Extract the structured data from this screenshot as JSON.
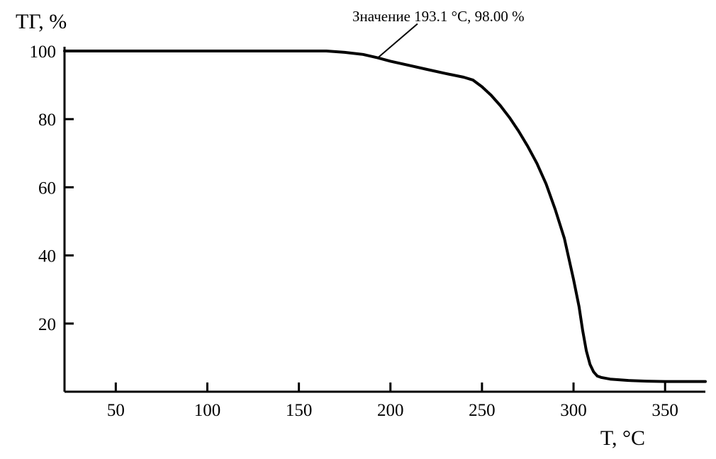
{
  "chart_data": {
    "type": "line",
    "title": "",
    "xlabel": "T, °C",
    "ylabel": "ТГ, %",
    "xlim": [
      22,
      372
    ],
    "ylim": [
      0,
      100
    ],
    "x_ticks": [
      50,
      100,
      150,
      200,
      250,
      300,
      350
    ],
    "y_ticks": [
      20,
      40,
      60,
      80,
      100
    ],
    "grid": false,
    "annotation": {
      "text": "Значение 193.1 °С, 98.00 %",
      "x": 193.1,
      "y": 98.0
    },
    "series": [
      {
        "color": "#000000",
        "x": [
          22,
          100,
          150,
          165,
          175,
          185,
          193,
          200,
          210,
          220,
          230,
          240,
          245,
          250,
          255,
          260,
          265,
          270,
          275,
          280,
          285,
          290,
          295,
          300,
          303,
          305,
          307,
          309,
          311,
          313,
          315,
          320,
          330,
          340,
          350,
          360,
          372
        ],
        "y": [
          100,
          100,
          100,
          100,
          99.6,
          99,
          98,
          97,
          95.8,
          94.6,
          93.4,
          92.3,
          91.5,
          89.5,
          87,
          84,
          80.5,
          76.5,
          72,
          67,
          61,
          53.5,
          45,
          33,
          25,
          18,
          12,
          8,
          5.8,
          4.6,
          4.2,
          3.7,
          3.3,
          3.1,
          3.0,
          3.0,
          3.0
        ]
      }
    ]
  }
}
